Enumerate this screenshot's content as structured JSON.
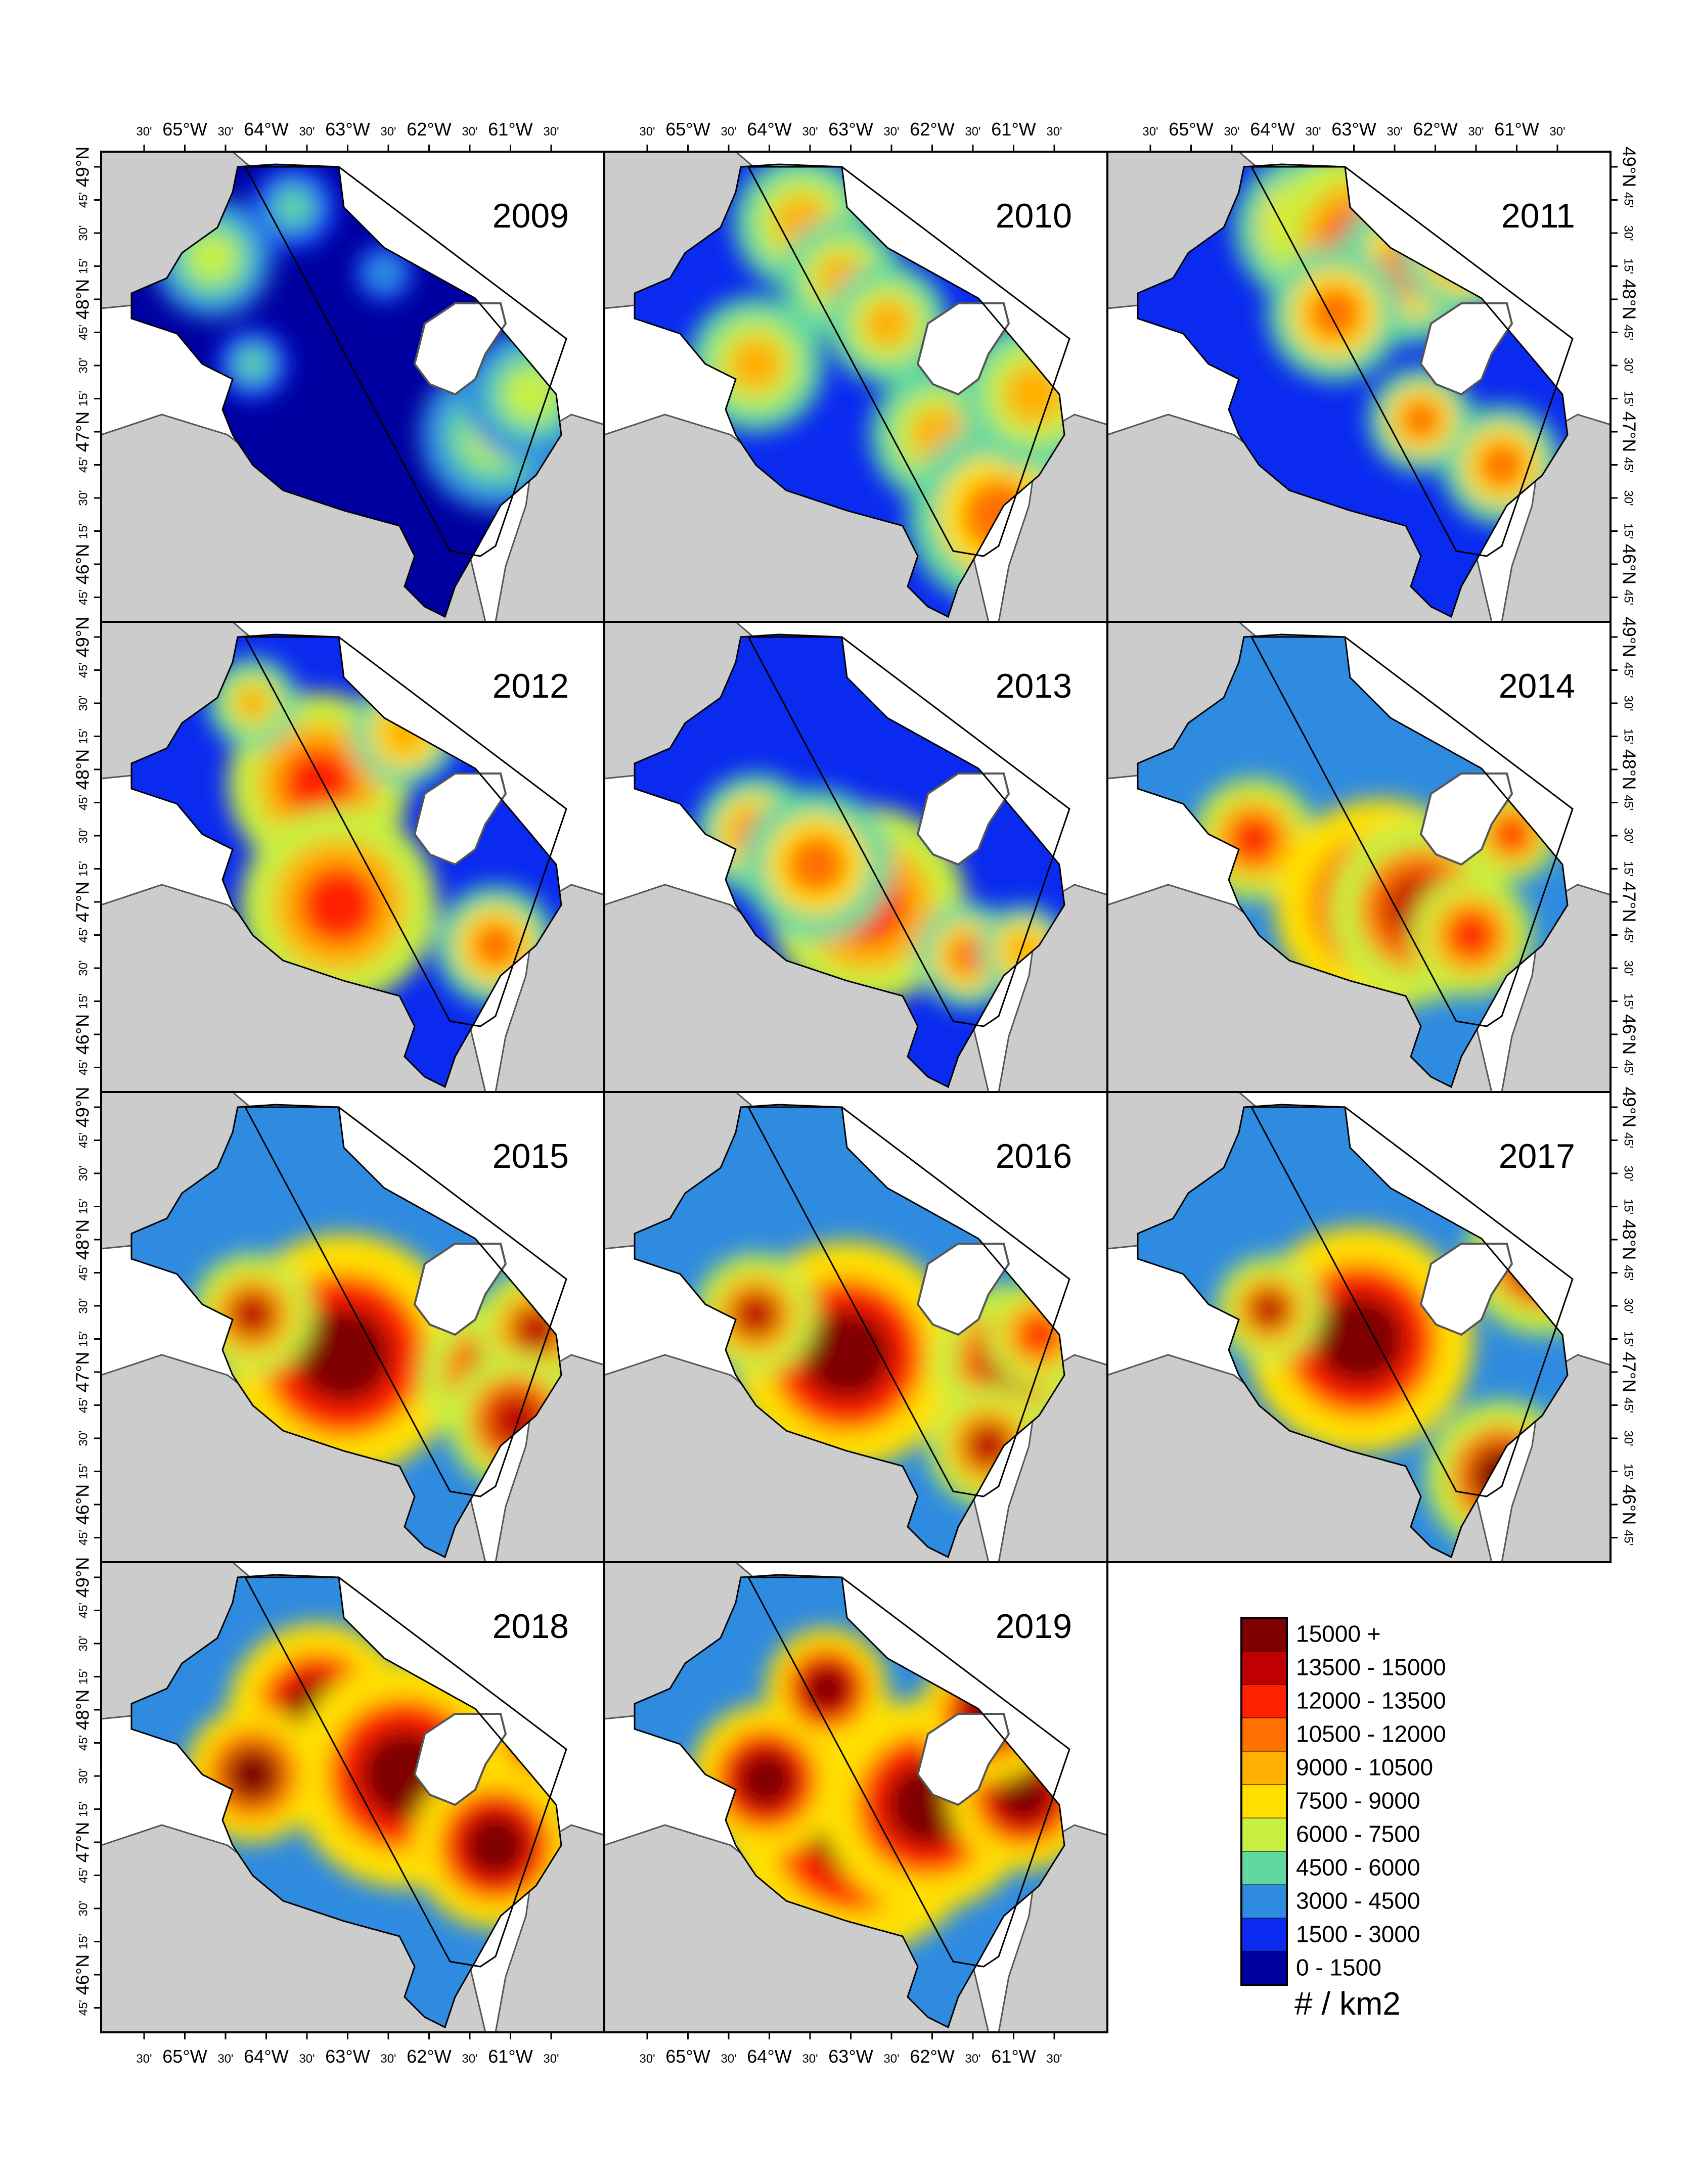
{
  "panels": [
    {
      "year": "2009",
      "level": 0.12
    },
    {
      "year": "2010",
      "level": 0.3
    },
    {
      "year": "2011",
      "level": 0.42
    },
    {
      "year": "2012",
      "level": 0.4
    },
    {
      "year": "2013",
      "level": 0.42
    },
    {
      "year": "2014",
      "level": 0.55
    },
    {
      "year": "2015",
      "level": 0.6
    },
    {
      "year": "2016",
      "level": 0.58
    },
    {
      "year": "2017",
      "level": 0.62
    },
    {
      "year": "2018",
      "level": 0.7
    },
    {
      "year": "2019",
      "level": 0.8
    }
  ],
  "lon_ticks": [
    {
      "label": "30'",
      "small": true
    },
    {
      "label": "65°W",
      "small": false
    },
    {
      "label": "30'",
      "small": true
    },
    {
      "label": "64°W",
      "small": false
    },
    {
      "label": "30'",
      "small": true
    },
    {
      "label": "63°W",
      "small": false
    },
    {
      "label": "30'",
      "small": true
    },
    {
      "label": "62°W",
      "small": false
    },
    {
      "label": "30'",
      "small": true
    },
    {
      "label": "61°W",
      "small": false
    },
    {
      "label": "30'",
      "small": true
    }
  ],
  "lat_ticks": [
    {
      "label": "49°N",
      "small": false
    },
    {
      "label": "45'",
      "small": true
    },
    {
      "label": "30'",
      "small": true
    },
    {
      "label": "15'",
      "small": true
    },
    {
      "label": "48°N",
      "small": false
    },
    {
      "label": "45'",
      "small": true
    },
    {
      "label": "30'",
      "small": true
    },
    {
      "label": "15'",
      "small": true
    },
    {
      "label": "47°N",
      "small": false
    },
    {
      "label": "45'",
      "small": true
    },
    {
      "label": "30'",
      "small": true
    },
    {
      "label": "15'",
      "small": true
    },
    {
      "label": "46°N",
      "small": false
    },
    {
      "label": "45'",
      "small": true
    }
  ],
  "legend": {
    "unit_label": "# / km2",
    "classes": [
      {
        "label": "15000 +",
        "color": "#7f0000"
      },
      {
        "label": "13500 - 15000",
        "color": "#c00000"
      },
      {
        "label": "12000 - 13500",
        "color": "#ff2000"
      },
      {
        "label": "10500 - 12000",
        "color": "#ff7000"
      },
      {
        "label": "9000 - 10500",
        "color": "#ffb000"
      },
      {
        "label": "7500 - 9000",
        "color": "#ffe000"
      },
      {
        "label": "6000 - 7500",
        "color": "#c8f040"
      },
      {
        "label": "4500 - 6000",
        "color": "#60d8a0"
      },
      {
        "label": "3000 - 4500",
        "color": "#2f8be0"
      },
      {
        "label": "1500 - 3000",
        "color": "#0a2af0"
      },
      {
        "label": "0 - 1500",
        "color": "#0000a0"
      }
    ]
  },
  "colors": {
    "land": "#cccccc",
    "coast": "#555555",
    "water": "#ffffff"
  }
}
